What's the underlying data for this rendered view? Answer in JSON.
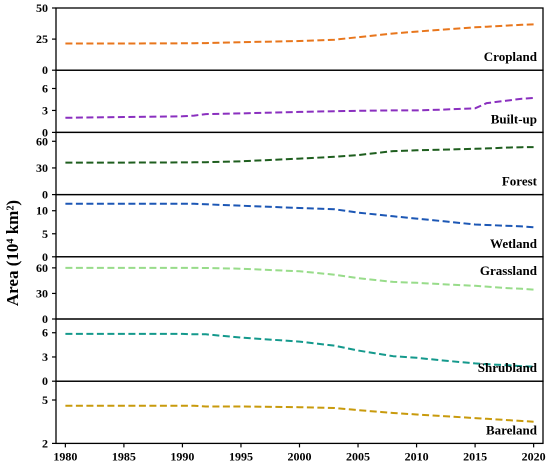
{
  "chart_data": {
    "type": "line",
    "ylabel": "Area (10⁴ km²)",
    "x": [
      1980,
      1985,
      1990,
      1991,
      1992,
      1995,
      2000,
      2003,
      2005,
      2008,
      2010,
      2012,
      2015,
      2016,
      2018,
      2019,
      2020
    ],
    "x_ticks": [
      1980,
      1985,
      1990,
      1995,
      2000,
      2005,
      2010,
      2015,
      2020
    ],
    "xlim": [
      1979.2,
      2020.8
    ],
    "panels": [
      {
        "name": "Cropland",
        "color": "#e8761c",
        "ylim": [
          0,
          50
        ],
        "y_ticks": [
          0,
          25,
          50
        ],
        "values": [
          21.5,
          21.5,
          21.6,
          21.7,
          21.8,
          22.5,
          23.5,
          24.5,
          26.5,
          29.5,
          31,
          32.5,
          34.5,
          35,
          36,
          36.5,
          36.8
        ]
      },
      {
        "name": "Built-up",
        "color": "#8a2fbf",
        "ylim": [
          0,
          8.5
        ],
        "y_ticks": [
          0,
          3,
          6
        ],
        "values": [
          2,
          2.1,
          2.2,
          2.3,
          2.5,
          2.6,
          2.8,
          2.9,
          2.95,
          3.0,
          3.0,
          3.1,
          3.3,
          4.0,
          4.4,
          4.6,
          4.7
        ]
      },
      {
        "name": "Forest",
        "color": "#1e5e1e",
        "ylim": [
          0,
          70
        ],
        "y_ticks": [
          0,
          30,
          60
        ],
        "values": [
          36,
          36,
          36.2,
          36.3,
          36.5,
          37.5,
          40.5,
          42.5,
          44.5,
          49,
          49.8,
          50.5,
          51.5,
          52,
          53,
          53.3,
          53.5
        ]
      },
      {
        "name": "Wetland",
        "color": "#1c57b5",
        "ylim": [
          0,
          13.5
        ],
        "y_ticks": [
          0,
          5,
          10
        ],
        "values": [
          11.5,
          11.5,
          11.5,
          11.5,
          11.4,
          11.1,
          10.6,
          10.3,
          9.6,
          8.8,
          8.3,
          7.8,
          7.0,
          6.9,
          6.7,
          6.6,
          6.4
        ]
      },
      {
        "name": "Grassland",
        "color": "#98dc8a",
        "ylim": [
          0,
          73
        ],
        "y_ticks": [
          0,
          30,
          60
        ],
        "values": [
          60,
          60,
          60,
          60,
          59.8,
          59,
          56,
          52,
          48,
          43.5,
          42.5,
          41,
          39,
          38,
          36,
          35.5,
          34.5
        ]
      },
      {
        "name": "Shrubland",
        "color": "#14998c",
        "ylim": [
          0,
          7.7
        ],
        "y_ticks": [
          0,
          3,
          6
        ],
        "values": [
          5.85,
          5.85,
          5.85,
          5.8,
          5.8,
          5.4,
          4.9,
          4.4,
          3.8,
          3.1,
          2.9,
          2.6,
          2.2,
          2.1,
          1.95,
          1.85,
          1.8
        ]
      },
      {
        "name": "Bareland",
        "color": "#c89a0c",
        "ylim": [
          2,
          6.3
        ],
        "y_ticks": [
          2,
          5
        ],
        "values": [
          4.6,
          4.6,
          4.6,
          4.6,
          4.55,
          4.55,
          4.5,
          4.45,
          4.3,
          4.1,
          4.0,
          3.9,
          3.75,
          3.7,
          3.6,
          3.55,
          3.5
        ]
      }
    ]
  }
}
